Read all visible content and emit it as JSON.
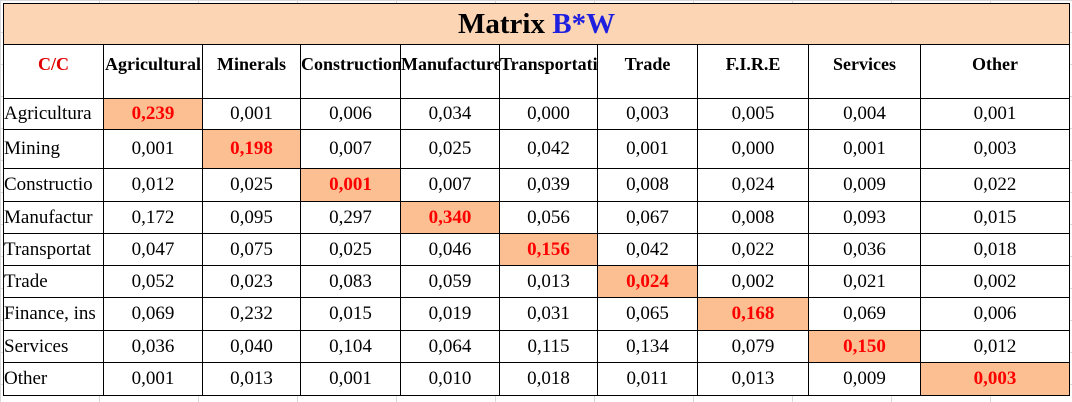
{
  "title": {
    "prefix": "Matrix",
    "highlight": "B*W"
  },
  "table": {
    "corner": "C/C",
    "columns": [
      "Agricultural",
      "Minerals",
      "Construction",
      "Manufactured",
      "Transportation",
      "Trade",
      "F.I.R.E",
      "Services",
      "Other"
    ],
    "rows": [
      {
        "label": "Agricultura",
        "values": [
          "0,239",
          "0,001",
          "0,006",
          "0,034",
          "0,000",
          "0,003",
          "0,005",
          "0,004",
          "0,001"
        ]
      },
      {
        "label": "Mining",
        "values": [
          "0,001",
          "0,198",
          "0,007",
          "0,025",
          "0,042",
          "0,001",
          "0,000",
          "0,001",
          "0,003"
        ]
      },
      {
        "label": "Constructio",
        "values": [
          "0,012",
          "0,025",
          "0,001",
          "0,007",
          "0,039",
          "0,008",
          "0,024",
          "0,009",
          "0,022"
        ]
      },
      {
        "label": "Manufactur",
        "values": [
          "0,172",
          "0,095",
          "0,297",
          "0,340",
          "0,056",
          "0,067",
          "0,008",
          "0,093",
          "0,015"
        ]
      },
      {
        "label": "Transportat",
        "values": [
          "0,047",
          "0,075",
          "0,025",
          "0,046",
          "0,156",
          "0,042",
          "0,022",
          "0,036",
          "0,018"
        ]
      },
      {
        "label": "Trade",
        "values": [
          "0,052",
          "0,023",
          "0,083",
          "0,059",
          "0,013",
          "0,024",
          "0,002",
          "0,021",
          "0,002"
        ]
      },
      {
        "label": "Finance, ins",
        "values": [
          "0,069",
          "0,232",
          "0,015",
          "0,019",
          "0,031",
          "0,065",
          "0,168",
          "0,069",
          "0,006"
        ]
      },
      {
        "label": "Services",
        "values": [
          "0,036",
          "0,040",
          "0,104",
          "0,064",
          "0,115",
          "0,134",
          "0,079",
          "0,150",
          "0,012"
        ]
      },
      {
        "label": "Other",
        "values": [
          "0,001",
          "0,013",
          "0,001",
          "0,010",
          "0,018",
          "0,011",
          "0,013",
          "0,009",
          "0,003"
        ]
      }
    ]
  }
}
